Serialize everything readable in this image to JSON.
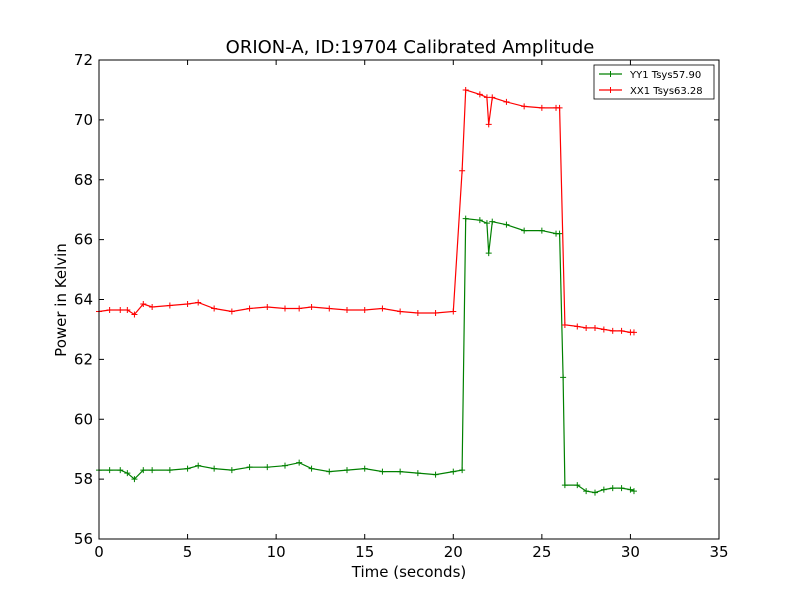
{
  "chart_data": {
    "type": "line",
    "title": "ORION-A, ID:19704 Calibrated Amplitude",
    "xlabel": "Time (seconds)",
    "ylabel": "Power in Kelvin",
    "xlim": [
      0,
      35
    ],
    "ylim": [
      56,
      72
    ],
    "xticks": [
      "0",
      "5",
      "10",
      "15",
      "20",
      "25",
      "30",
      "35"
    ],
    "yticks": [
      "56",
      "58",
      "60",
      "62",
      "64",
      "66",
      "68",
      "70",
      "72"
    ],
    "grid": false,
    "legend_position": "top-right",
    "marker": "+",
    "series": [
      {
        "name": "YY1 Tsys57.90",
        "color": "#008000",
        "x": [
          0,
          0.6,
          1.2,
          1.6,
          2.0,
          2.5,
          3.0,
          4.0,
          5.0,
          5.6,
          6.5,
          7.5,
          8.5,
          9.5,
          10.5,
          11.3,
          12.0,
          13.0,
          14.0,
          15.0,
          16.0,
          17.0,
          18.0,
          19.0,
          20.0,
          20.5,
          20.7,
          21.5,
          21.9,
          22.0,
          22.2,
          23.0,
          24.0,
          25.0,
          25.8,
          26.0,
          26.2,
          26.3,
          27.0,
          27.5,
          28.0,
          28.5,
          29.0,
          29.5,
          30.0,
          30.2
        ],
        "y": [
          58.3,
          58.3,
          58.3,
          58.2,
          58.0,
          58.3,
          58.3,
          58.3,
          58.35,
          58.45,
          58.35,
          58.3,
          58.4,
          58.4,
          58.45,
          58.55,
          58.35,
          58.25,
          58.3,
          58.35,
          58.25,
          58.25,
          58.2,
          58.15,
          58.25,
          58.3,
          66.7,
          66.65,
          66.55,
          65.55,
          66.6,
          66.5,
          66.3,
          66.3,
          66.2,
          66.2,
          61.4,
          57.8,
          57.8,
          57.6,
          57.55,
          57.65,
          57.7,
          57.7,
          57.65,
          57.6
        ]
      },
      {
        "name": "XX1 Tsys63.28",
        "color": "#ff0000",
        "x": [
          0,
          0.6,
          1.2,
          1.6,
          2.0,
          2.5,
          3.0,
          4.0,
          5.0,
          5.6,
          6.5,
          7.5,
          8.5,
          9.5,
          10.5,
          11.3,
          12.0,
          13.0,
          14.0,
          15.0,
          16.0,
          17.0,
          18.0,
          19.0,
          20.0,
          20.5,
          20.7,
          21.5,
          21.9,
          22.0,
          22.2,
          23.0,
          24.0,
          25.0,
          25.8,
          26.0,
          26.3,
          27.0,
          27.5,
          28.0,
          28.5,
          29.0,
          29.5,
          30.0,
          30.2
        ],
        "y": [
          63.6,
          63.65,
          63.65,
          63.65,
          63.5,
          63.85,
          63.75,
          63.8,
          63.85,
          63.9,
          63.7,
          63.6,
          63.7,
          63.75,
          63.7,
          63.7,
          63.75,
          63.7,
          63.65,
          63.65,
          63.7,
          63.6,
          63.55,
          63.55,
          63.6,
          68.3,
          71.0,
          70.85,
          70.75,
          69.85,
          70.75,
          70.6,
          70.45,
          70.4,
          70.4,
          70.4,
          63.15,
          63.1,
          63.05,
          63.05,
          63.0,
          62.95,
          62.95,
          62.9,
          62.9
        ]
      }
    ]
  }
}
